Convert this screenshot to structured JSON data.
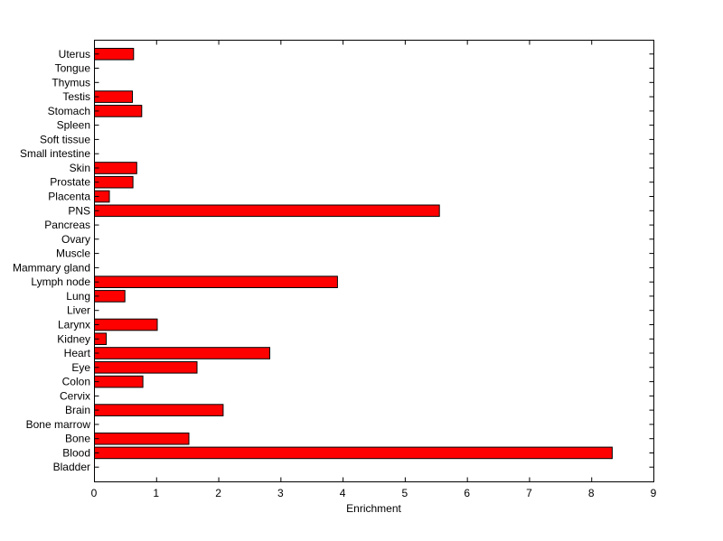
{
  "chart_data": {
    "type": "bar",
    "orientation": "horizontal",
    "title": "",
    "xlabel": "Enrichment",
    "ylabel": "",
    "xlim": [
      0,
      9
    ],
    "xticks": [
      0,
      1,
      2,
      3,
      4,
      5,
      6,
      7,
      8,
      9
    ],
    "grid": false,
    "legend": "none",
    "bar_color": "#ff0000",
    "bar_edge_color": "#000000",
    "categories": [
      "Bladder",
      "Blood",
      "Bone",
      "Bone marrow",
      "Brain",
      "Cervix",
      "Colon",
      "Eye",
      "Heart",
      "Kidney",
      "Larynx",
      "Liver",
      "Lung",
      "Lymph node",
      "Mammary gland",
      "Muscle",
      "Ovary",
      "Pancreas",
      "PNS",
      "Placenta",
      "Prostate",
      "Skin",
      "Small intestine",
      "Soft tissue",
      "Spleen",
      "Stomach",
      "Testis",
      "Thymus",
      "Tongue",
      "Uterus"
    ],
    "values": [
      0,
      8.33,
      1.52,
      0,
      2.07,
      0,
      0.78,
      1.65,
      2.82,
      0.19,
      1.01,
      0,
      0.49,
      3.91,
      0,
      0,
      0,
      0,
      5.55,
      0.24,
      0.62,
      0.68,
      0,
      0,
      0,
      0.76,
      0.61,
      0,
      0,
      0.63
    ]
  }
}
